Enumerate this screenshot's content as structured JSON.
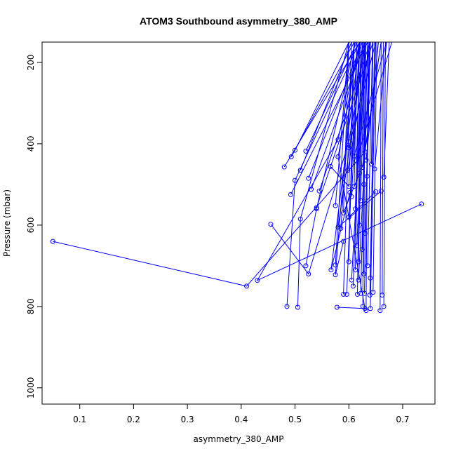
{
  "chart_data": {
    "type": "line",
    "title": "ATOM3 Southbound asymmetry_380_AMP",
    "xlabel": "asymmetry_380_AMP",
    "ylabel": "Pressure (mbar)",
    "xlim": [
      0.03,
      0.76
    ],
    "ylim": [
      1040,
      150
    ],
    "y_reversed": true,
    "x_ticks": [
      0.1,
      0.2,
      0.3,
      0.4,
      0.5,
      0.6,
      0.7
    ],
    "y_ticks": [
      200,
      400,
      600,
      800,
      1000
    ],
    "series_color": "#0000ff",
    "marker": "open-circle",
    "series": [
      {
        "points": [
          [
            0.05,
            640
          ],
          [
            0.41,
            750
          ],
          [
            0.63,
            420
          ],
          [
            0.66,
            150
          ]
        ]
      },
      {
        "points": [
          [
            0.735,
            548
          ],
          [
            0.43,
            736
          ],
          [
            0.58,
            390
          ],
          [
            0.62,
            150
          ]
        ]
      },
      {
        "points": [
          [
            0.455,
            598
          ],
          [
            0.525,
            720
          ],
          [
            0.6,
            395
          ],
          [
            0.63,
            150
          ]
        ]
      },
      {
        "points": [
          [
            0.48,
            457
          ],
          [
            0.62,
            150
          ]
        ]
      },
      {
        "points": [
          [
            0.493,
            432
          ],
          [
            0.61,
            150
          ]
        ]
      },
      {
        "points": [
          [
            0.5,
            416
          ],
          [
            0.6,
            150
          ]
        ]
      },
      {
        "points": [
          [
            0.52,
            418
          ],
          [
            0.615,
            150
          ]
        ]
      },
      {
        "points": [
          [
            0.51,
            465
          ],
          [
            0.605,
            150
          ]
        ]
      },
      {
        "points": [
          [
            0.525,
            485
          ],
          [
            0.625,
            150
          ]
        ]
      },
      {
        "points": [
          [
            0.53,
            512
          ],
          [
            0.63,
            150
          ]
        ]
      },
      {
        "points": [
          [
            0.545,
            516
          ],
          [
            0.64,
            150
          ]
        ]
      },
      {
        "points": [
          [
            0.492,
            525
          ],
          [
            0.635,
            150
          ]
        ]
      },
      {
        "points": [
          [
            0.54,
            557
          ],
          [
            0.645,
            150
          ]
        ]
      },
      {
        "points": [
          [
            0.485,
            800
          ],
          [
            0.5,
            490
          ],
          [
            0.62,
            150
          ]
        ]
      },
      {
        "points": [
          [
            0.505,
            802
          ],
          [
            0.51,
            585
          ],
          [
            0.6,
            150
          ]
        ]
      },
      {
        "points": [
          [
            0.52,
            700
          ],
          [
            0.54,
            560
          ],
          [
            0.612,
            150
          ]
        ]
      },
      {
        "points": [
          [
            0.578,
            802
          ],
          [
            0.63,
            805
          ],
          [
            0.58,
            432
          ],
          [
            0.62,
            150
          ]
        ]
      },
      {
        "points": [
          [
            0.566,
            456
          ],
          [
            0.6,
            505
          ],
          [
            0.61,
            150
          ]
        ]
      },
      {
        "points": [
          [
            0.598,
            465
          ],
          [
            0.64,
            150
          ]
        ]
      },
      {
        "points": [
          [
            0.6,
            410
          ],
          [
            0.65,
            150
          ]
        ]
      },
      {
        "points": [
          [
            0.61,
            430
          ],
          [
            0.67,
            150
          ]
        ]
      },
      {
        "points": [
          [
            0.614,
            442
          ],
          [
            0.68,
            150
          ]
        ]
      },
      {
        "points": [
          [
            0.625,
            458
          ],
          [
            0.66,
            150
          ]
        ]
      },
      {
        "points": [
          [
            0.632,
            440
          ],
          [
            0.655,
            150
          ]
        ]
      },
      {
        "points": [
          [
            0.648,
            462
          ],
          [
            0.67,
            150
          ]
        ]
      },
      {
        "points": [
          [
            0.665,
            482
          ],
          [
            0.675,
            150
          ]
        ]
      },
      {
        "points": [
          [
            0.66,
            516
          ],
          [
            0.58,
            605
          ],
          [
            0.63,
            150
          ]
        ]
      },
      {
        "points": [
          [
            0.65,
            518
          ],
          [
            0.6,
            580
          ],
          [
            0.62,
            150
          ]
        ]
      },
      {
        "points": [
          [
            0.62,
            472
          ],
          [
            0.59,
            570
          ],
          [
            0.6,
            150
          ]
        ]
      },
      {
        "points": [
          [
            0.602,
            520
          ],
          [
            0.567,
            710
          ],
          [
            0.62,
            150
          ]
        ]
      },
      {
        "points": [
          [
            0.59,
            640
          ],
          [
            0.575,
            722
          ],
          [
            0.61,
            150
          ]
        ]
      },
      {
        "points": [
          [
            0.6,
            690
          ],
          [
            0.61,
            150
          ]
        ]
      },
      {
        "points": [
          [
            0.605,
            735
          ],
          [
            0.63,
            150
          ]
        ]
      },
      {
        "points": [
          [
            0.596,
            770
          ],
          [
            0.615,
            150
          ]
        ]
      },
      {
        "points": [
          [
            0.608,
            750
          ],
          [
            0.625,
            150
          ]
        ]
      },
      {
        "points": [
          [
            0.618,
            735
          ],
          [
            0.64,
            150
          ]
        ]
      },
      {
        "points": [
          [
            0.622,
            768
          ],
          [
            0.635,
            150
          ]
        ]
      },
      {
        "points": [
          [
            0.626,
            800
          ],
          [
            0.628,
            150
          ]
        ]
      },
      {
        "points": [
          [
            0.632,
            810
          ],
          [
            0.636,
            150
          ]
        ]
      },
      {
        "points": [
          [
            0.64,
            805
          ],
          [
            0.65,
            150
          ]
        ]
      },
      {
        "points": [
          [
            0.658,
            810
          ],
          [
            0.66,
            150
          ]
        ]
      },
      {
        "points": [
          [
            0.665,
            800
          ],
          [
            0.668,
            150
          ]
        ]
      },
      {
        "points": [
          [
            0.662,
            772
          ],
          [
            0.664,
            150
          ]
        ]
      },
      {
        "points": [
          [
            0.645,
            765
          ],
          [
            0.652,
            150
          ]
        ]
      },
      {
        "points": [
          [
            0.639,
            772
          ],
          [
            0.648,
            150
          ]
        ]
      },
      {
        "points": [
          [
            0.629,
            768
          ],
          [
            0.638,
            150
          ]
        ]
      },
      {
        "points": [
          [
            0.616,
            770
          ],
          [
            0.622,
            150
          ]
        ]
      },
      {
        "points": [
          [
            0.59,
            770
          ],
          [
            0.605,
            150
          ]
        ]
      },
      {
        "points": [
          [
            0.575,
            698
          ],
          [
            0.6,
            150
          ]
        ]
      },
      {
        "points": [
          [
            0.585,
            608
          ],
          [
            0.61,
            150
          ]
        ]
      },
      {
        "points": [
          [
            0.612,
            560
          ],
          [
            0.62,
            150
          ]
        ]
      },
      {
        "points": [
          [
            0.622,
            540
          ],
          [
            0.63,
            150
          ]
        ]
      },
      {
        "points": [
          [
            0.628,
            500
          ],
          [
            0.635,
            150
          ]
        ]
      },
      {
        "points": [
          [
            0.634,
            480
          ],
          [
            0.64,
            150
          ]
        ]
      },
      {
        "points": [
          [
            0.642,
            450
          ],
          [
            0.645,
            150
          ]
        ]
      },
      {
        "points": [
          [
            0.63,
            620
          ],
          [
            0.64,
            150
          ]
        ]
      },
      {
        "points": [
          [
            0.625,
            660
          ],
          [
            0.632,
            150
          ]
        ]
      },
      {
        "points": [
          [
            0.618,
            690
          ],
          [
            0.626,
            150
          ]
        ]
      },
      {
        "points": [
          [
            0.612,
            710
          ],
          [
            0.62,
            150
          ]
        ]
      },
      {
        "points": [
          [
            0.605,
            530
          ],
          [
            0.62,
            150
          ]
        ]
      },
      {
        "points": [
          [
            0.615,
            650
          ],
          [
            0.63,
            150
          ]
        ]
      },
      {
        "points": [
          [
            0.635,
            700
          ],
          [
            0.644,
            150
          ]
        ]
      },
      {
        "points": [
          [
            0.64,
            730
          ],
          [
            0.648,
            150
          ]
        ]
      },
      {
        "points": [
          [
            0.628,
            720
          ],
          [
            0.63,
            150
          ]
        ]
      },
      {
        "points": [
          [
            0.62,
            600
          ],
          [
            0.622,
            150
          ]
        ]
      },
      {
        "points": [
          [
            0.61,
            505
          ],
          [
            0.615,
            150
          ]
        ]
      },
      {
        "points": [
          [
            0.575,
            552
          ],
          [
            0.6,
            150
          ]
        ]
      }
    ]
  }
}
